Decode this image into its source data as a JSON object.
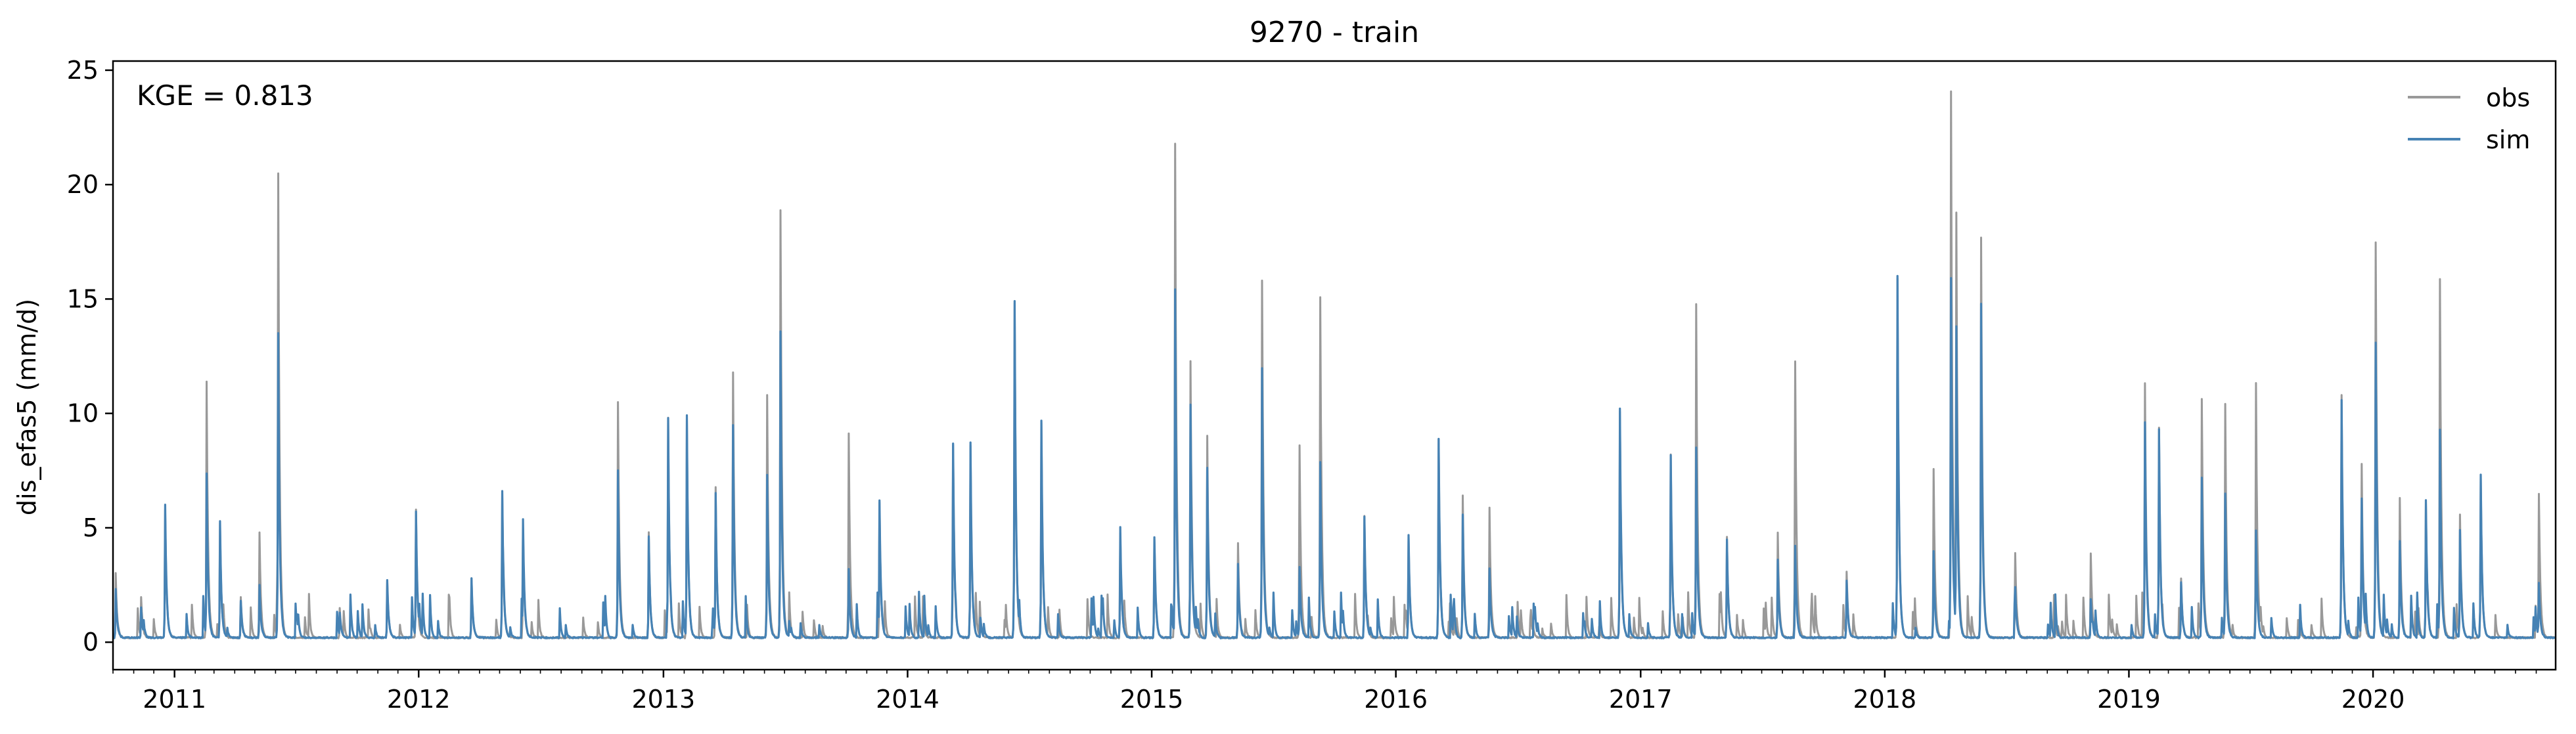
{
  "chart_data": {
    "type": "line",
    "title": "9270 - train",
    "xlabel": "",
    "ylabel": "dis_efas5 (mm/d)",
    "annotation": "KGE = 0.813",
    "x_start": "2010-10-01",
    "x_end": "2020-09-30",
    "xlim": [
      "2010-10-01",
      "2020-09-30"
    ],
    "ylim": [
      -1.2,
      25.4
    ],
    "x_ticks": [
      "2011",
      "2012",
      "2013",
      "2014",
      "2015",
      "2016",
      "2017",
      "2018",
      "2019",
      "2020"
    ],
    "y_ticks": [
      0,
      5,
      10,
      15,
      20,
      25
    ],
    "grid": false,
    "legend_position": "top-right",
    "baseflow": 0.2,
    "series": [
      {
        "name": "obs",
        "color": "#999999",
        "peaks": [
          [
            "2010-10-05",
            3.0
          ],
          [
            "2010-11-12",
            2.0
          ],
          [
            "2010-12-18",
            5.8
          ],
          [
            "2011-02-18",
            11.4
          ],
          [
            "2011-03-10",
            5.2
          ],
          [
            "2011-04-10",
            2.0
          ],
          [
            "2011-05-08",
            4.8
          ],
          [
            "2011-06-05",
            20.5
          ],
          [
            "2011-09-05",
            1.5
          ],
          [
            "2011-11-15",
            2.7
          ],
          [
            "2011-12-28",
            5.8
          ],
          [
            "2012-03-20",
            2.8
          ],
          [
            "2012-05-05",
            6.5
          ],
          [
            "2012-06-05",
            5.0
          ],
          [
            "2012-10-25",
            10.5
          ],
          [
            "2012-12-10",
            4.8
          ],
          [
            "2013-01-08",
            9.8
          ],
          [
            "2013-02-05",
            9.8
          ],
          [
            "2013-03-20",
            6.8
          ],
          [
            "2013-04-15",
            11.8
          ],
          [
            "2013-06-05",
            10.8
          ],
          [
            "2013-06-25",
            18.9
          ],
          [
            "2013-10-05",
            9.1
          ],
          [
            "2013-11-20",
            6.1
          ],
          [
            "2014-03-10",
            8.6
          ],
          [
            "2014-04-05",
            8.6
          ],
          [
            "2014-06-10",
            14.8
          ],
          [
            "2014-07-20",
            9.6
          ],
          [
            "2014-11-15",
            4.8
          ],
          [
            "2015-01-05",
            4.5
          ],
          [
            "2015-02-05",
            21.8
          ],
          [
            "2015-02-28",
            12.3
          ],
          [
            "2015-03-25",
            9.0
          ],
          [
            "2015-05-10",
            4.3
          ],
          [
            "2015-06-15",
            15.8
          ],
          [
            "2015-08-10",
            8.6
          ],
          [
            "2015-09-10",
            15.1
          ],
          [
            "2015-11-15",
            5.5
          ],
          [
            "2016-01-20",
            4.6
          ],
          [
            "2016-03-05",
            8.9
          ],
          [
            "2016-04-10",
            6.4
          ],
          [
            "2016-05-20",
            5.9
          ],
          [
            "2016-12-01",
            10.1
          ],
          [
            "2017-02-15",
            8.2
          ],
          [
            "2017-03-25",
            14.8
          ],
          [
            "2017-05-10",
            4.6
          ],
          [
            "2017-07-25",
            4.8
          ],
          [
            "2017-08-20",
            12.3
          ],
          [
            "2017-11-05",
            3.1
          ],
          [
            "2018-01-20",
            15.9
          ],
          [
            "2018-03-15",
            7.6
          ],
          [
            "2018-04-10",
            24.1
          ],
          [
            "2018-04-18",
            18.8
          ],
          [
            "2018-05-25",
            17.7
          ],
          [
            "2018-07-15",
            3.9
          ],
          [
            "2018-11-05",
            3.9
          ],
          [
            "2019-01-25",
            11.3
          ],
          [
            "2019-02-15",
            9.4
          ],
          [
            "2019-03-20",
            2.8
          ],
          [
            "2019-04-20",
            10.6
          ],
          [
            "2019-05-25",
            10.4
          ],
          [
            "2019-07-10",
            11.3
          ],
          [
            "2019-11-15",
            10.8
          ],
          [
            "2019-12-15",
            7.8
          ],
          [
            "2020-01-05",
            17.5
          ],
          [
            "2020-02-10",
            6.3
          ],
          [
            "2020-03-20",
            6.1
          ],
          [
            "2020-04-10",
            15.9
          ],
          [
            "2020-05-10",
            5.6
          ],
          [
            "2020-06-10",
            7.3
          ],
          [
            "2020-09-05",
            6.5
          ]
        ]
      },
      {
        "name": "sim",
        "color": "#4682b4",
        "peaks": [
          [
            "2010-10-05",
            2.3
          ],
          [
            "2010-11-12",
            1.5
          ],
          [
            "2010-12-18",
            6.0
          ],
          [
            "2011-02-18",
            7.4
          ],
          [
            "2011-03-10",
            5.3
          ],
          [
            "2011-04-10",
            1.8
          ],
          [
            "2011-05-08",
            2.5
          ],
          [
            "2011-06-05",
            13.5
          ],
          [
            "2011-09-05",
            1.3
          ],
          [
            "2011-11-15",
            2.7
          ],
          [
            "2011-12-28",
            5.7
          ],
          [
            "2012-03-20",
            2.8
          ],
          [
            "2012-05-05",
            6.6
          ],
          [
            "2012-06-05",
            5.4
          ],
          [
            "2012-10-25",
            7.5
          ],
          [
            "2012-12-10",
            4.6
          ],
          [
            "2013-01-08",
            9.8
          ],
          [
            "2013-02-05",
            9.9
          ],
          [
            "2013-03-20",
            6.5
          ],
          [
            "2013-04-15",
            9.5
          ],
          [
            "2013-06-05",
            7.3
          ],
          [
            "2013-06-25",
            13.6
          ],
          [
            "2013-10-05",
            3.2
          ],
          [
            "2013-11-20",
            6.2
          ],
          [
            "2014-03-10",
            8.7
          ],
          [
            "2014-04-05",
            8.7
          ],
          [
            "2014-06-10",
            14.9
          ],
          [
            "2014-07-20",
            9.7
          ],
          [
            "2014-11-15",
            5.0
          ],
          [
            "2015-01-05",
            4.6
          ],
          [
            "2015-02-05",
            15.4
          ],
          [
            "2015-02-28",
            10.4
          ],
          [
            "2015-03-25",
            7.6
          ],
          [
            "2015-05-10",
            3.4
          ],
          [
            "2015-06-15",
            12.0
          ],
          [
            "2015-08-10",
            3.3
          ],
          [
            "2015-09-10",
            7.9
          ],
          [
            "2015-11-15",
            5.5
          ],
          [
            "2016-01-20",
            4.7
          ],
          [
            "2016-03-05",
            8.9
          ],
          [
            "2016-04-10",
            5.6
          ],
          [
            "2016-05-20",
            3.2
          ],
          [
            "2016-12-01",
            10.2
          ],
          [
            "2017-02-15",
            8.2
          ],
          [
            "2017-03-25",
            8.5
          ],
          [
            "2017-05-10",
            4.5
          ],
          [
            "2017-07-25",
            3.6
          ],
          [
            "2017-08-20",
            4.2
          ],
          [
            "2017-11-05",
            2.7
          ],
          [
            "2018-01-20",
            16.0
          ],
          [
            "2018-03-15",
            4.0
          ],
          [
            "2018-04-10",
            15.9
          ],
          [
            "2018-04-18",
            13.8
          ],
          [
            "2018-05-25",
            14.8
          ],
          [
            "2018-07-15",
            2.4
          ],
          [
            "2018-11-05",
            1.9
          ],
          [
            "2019-01-25",
            9.6
          ],
          [
            "2019-02-15",
            9.3
          ],
          [
            "2019-03-20",
            2.6
          ],
          [
            "2019-04-20",
            7.2
          ],
          [
            "2019-05-25",
            6.5
          ],
          [
            "2019-07-10",
            4.9
          ],
          [
            "2019-11-15",
            10.6
          ],
          [
            "2019-12-15",
            6.3
          ],
          [
            "2020-01-05",
            13.1
          ],
          [
            "2020-02-10",
            4.4
          ],
          [
            "2020-03-20",
            6.2
          ],
          [
            "2020-04-10",
            9.3
          ],
          [
            "2020-05-10",
            4.9
          ],
          [
            "2020-06-10",
            7.3
          ],
          [
            "2020-09-05",
            2.6
          ]
        ]
      }
    ]
  }
}
